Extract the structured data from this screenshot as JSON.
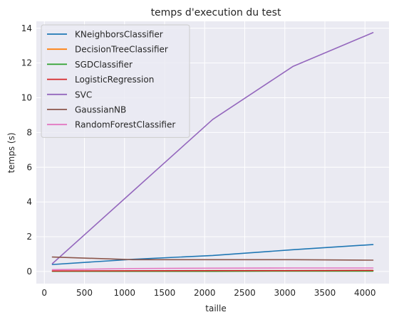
{
  "chart_data": {
    "type": "line",
    "title": "temps d'execution du test",
    "xlabel": "taille",
    "ylabel": "temps (s)",
    "xlim": [
      -100,
      4300
    ],
    "ylim": [
      -0.7,
      14.4
    ],
    "xticks": [
      0,
      500,
      1000,
      1500,
      2000,
      2500,
      3000,
      3500,
      4000
    ],
    "yticks": [
      0,
      2,
      4,
      6,
      8,
      10,
      12,
      14
    ],
    "grid": true,
    "legend_position": "top-left",
    "x": [
      100,
      1100,
      2100,
      3100,
      4100
    ],
    "series": [
      {
        "name": "KNeighborsClassifier",
        "color": "#1f77b4",
        "values": [
          0.4,
          0.7,
          0.92,
          1.25,
          1.55
        ]
      },
      {
        "name": "DecisionTreeClassifier",
        "color": "#ff7f0e",
        "values": [
          0.02,
          0.03,
          0.03,
          0.04,
          0.05
        ]
      },
      {
        "name": "SGDClassifier",
        "color": "#2ca02c",
        "values": [
          0.01,
          0.01,
          0.01,
          0.02,
          0.02
        ]
      },
      {
        "name": "LogisticRegression",
        "color": "#d62728",
        "values": [
          0.03,
          0.04,
          0.05,
          0.05,
          0.06
        ]
      },
      {
        "name": "SVC",
        "color": "#9467bd",
        "values": [
          0.45,
          4.6,
          8.75,
          11.8,
          13.75
        ]
      },
      {
        "name": "GaussianNB",
        "color": "#8c564b",
        "values": [
          0.83,
          0.68,
          0.68,
          0.68,
          0.65
        ]
      },
      {
        "name": "RandomForestClassifier",
        "color": "#e377c2",
        "values": [
          0.1,
          0.17,
          0.19,
          0.2,
          0.2
        ]
      }
    ]
  }
}
